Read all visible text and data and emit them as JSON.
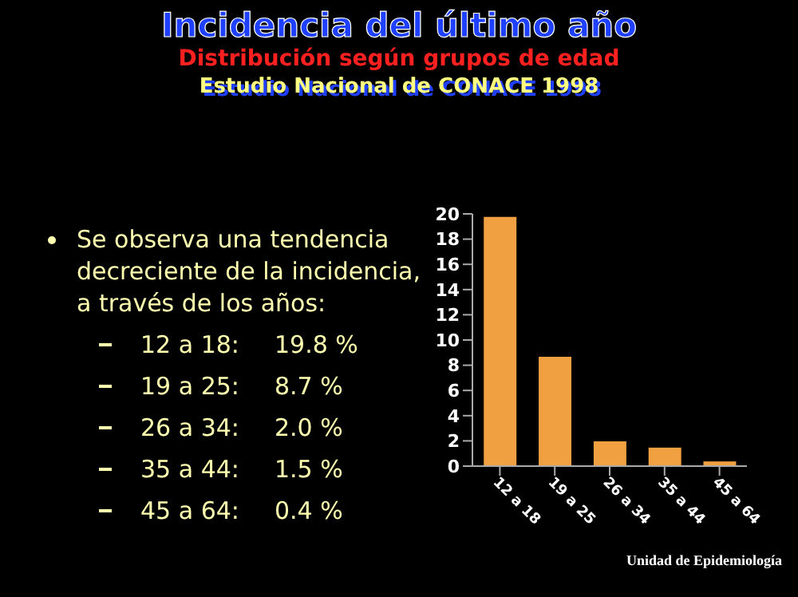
{
  "chart_data": {
    "type": "bar",
    "title": "Incidencia del último año",
    "subtitle": "Distribución según grupos de edad",
    "annotations": [
      "Estudio Nacional de CONACE 1998",
      "Se observa una tendencia decreciente de la incidencia, a través de los años:",
      "12 a 18:",
      "19.8 %",
      "19 a 25:",
      "8.7 %",
      "26 a 34:",
      "2.0 %",
      "35 a 44:",
      "1.5 %",
      "45 a 64:",
      "0.4 %",
      "Unidad de Epidemiología"
    ],
    "categories": [
      "12 a 18",
      "19 a 25",
      "26 a 34",
      "35 a 44",
      "45 a 64"
    ],
    "values": [
      19.8,
      8.7,
      2.0,
      1.5,
      0.4
    ],
    "color": "#f0a040",
    "ylim": [
      0,
      20
    ],
    "yticks": [
      0,
      2,
      4,
      6,
      8,
      10,
      12,
      14,
      16,
      18,
      20
    ],
    "grid": false
  }
}
